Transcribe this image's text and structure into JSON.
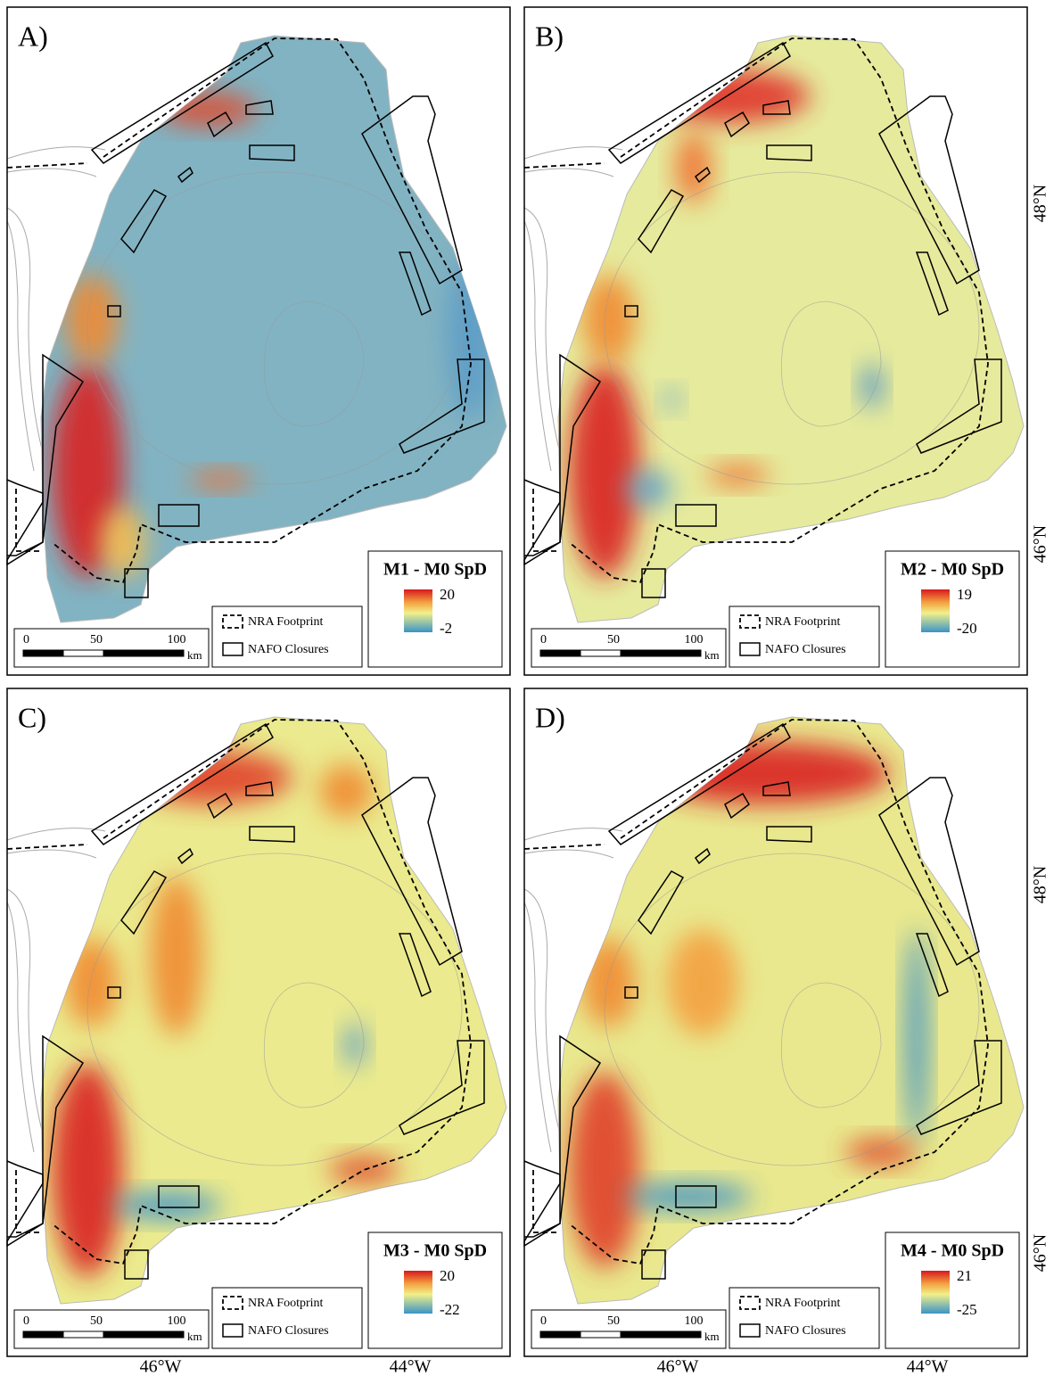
{
  "panels": [
    {
      "label": "A)",
      "legend_title": "M1 - M0 SpD",
      "max": 20,
      "min": -2
    },
    {
      "label": "B)",
      "legend_title": "M2 - M0 SpD",
      "max": 19,
      "min": -20
    },
    {
      "label": "C)",
      "legend_title": "M3 - M0 SpD",
      "max": 20,
      "min": -22
    },
    {
      "label": "D)",
      "legend_title": "M4 - M0 SpD",
      "max": 21,
      "min": -25
    }
  ],
  "legend": {
    "footprint": "NRA Footprint",
    "closures": "NAFO Closures"
  },
  "scalebar": {
    "ticks": [
      0,
      50,
      100
    ],
    "unit": "km"
  },
  "latitudes": [
    "48°N",
    "46°N"
  ],
  "longitudes": [
    "46°W",
    "44°W"
  ]
}
